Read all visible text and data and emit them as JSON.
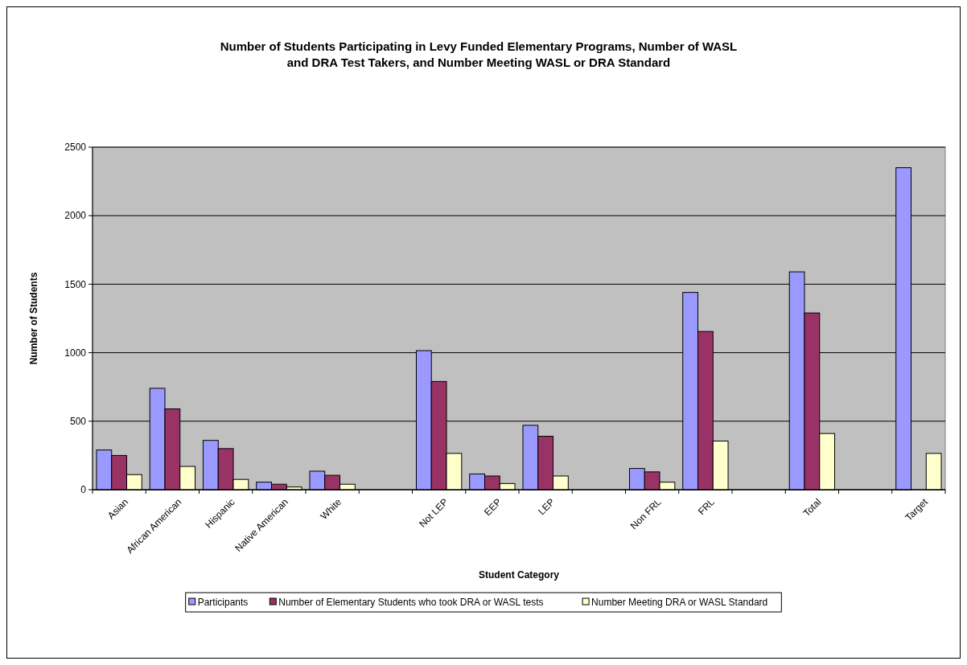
{
  "chart_data": {
    "type": "bar",
    "title": "Number of Students Participating in Levy Funded Elementary Programs, Number of WASL and DRA Test Takers, and Number Meeting WASL or DRA Standard",
    "xlabel": "Student Category",
    "ylabel": "Number of Students",
    "categories": [
      "Asian",
      "African American",
      "Hispanic",
      "Native American",
      "White",
      null,
      "Not LEP",
      "EEP",
      "LEP",
      null,
      "Non FRL",
      "FRL",
      null,
      "Total",
      null,
      "Target"
    ],
    "series": [
      {
        "name": "Participants",
        "color": "#9999ff",
        "values": [
          290,
          740,
          360,
          55,
          135,
          null,
          1015,
          115,
          470,
          null,
          155,
          1440,
          null,
          1590,
          null,
          2350
        ]
      },
      {
        "name": "Number of Elementary Students who took DRA or WASL tests",
        "color": "#993366",
        "values": [
          250,
          590,
          300,
          40,
          105,
          null,
          790,
          100,
          390,
          null,
          130,
          1155,
          null,
          1290,
          null,
          null
        ]
      },
      {
        "name": "Number Meeting DRA or WASL Standard",
        "color": "#ffffcc",
        "values": [
          110,
          170,
          75,
          20,
          40,
          null,
          265,
          45,
          100,
          null,
          55,
          355,
          null,
          410,
          null,
          265
        ]
      }
    ],
    "ylim": [
      0,
      2500
    ],
    "yticks": [
      0,
      500,
      1000,
      1500,
      2000,
      2500
    ],
    "grid": "y",
    "legend": "bottom"
  }
}
